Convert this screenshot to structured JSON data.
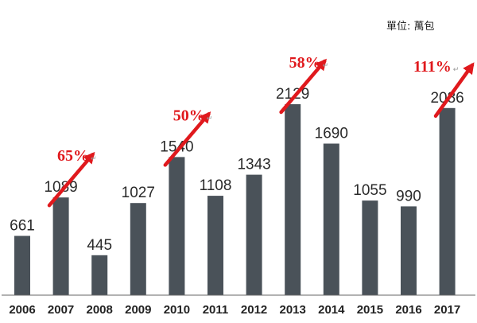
{
  "chart_data": {
    "type": "bar",
    "unit": "單位: 萬包",
    "categories": [
      "2006",
      "2007",
      "2008",
      "2009",
      "2010",
      "2011",
      "2012",
      "2013",
      "2014",
      "2015",
      "2016",
      "2017"
    ],
    "values": [
      661,
      1089,
      445,
      1027,
      1540,
      1108,
      1343,
      2129,
      1690,
      1055,
      990,
      2086
    ],
    "ylim": [
      0,
      2600
    ],
    "grid": false,
    "legend": "none",
    "bar_color": "#4a5259",
    "annotations": [
      {
        "text": "65%",
        "from": "2006",
        "to": "2007"
      },
      {
        "text": "50%",
        "from": "2009",
        "to": "2010"
      },
      {
        "text": "58%",
        "from": "2012",
        "to": "2013"
      },
      {
        "text": "111%",
        "from": "2016",
        "to": "2017"
      }
    ],
    "annotation_color": "#e0191d"
  }
}
